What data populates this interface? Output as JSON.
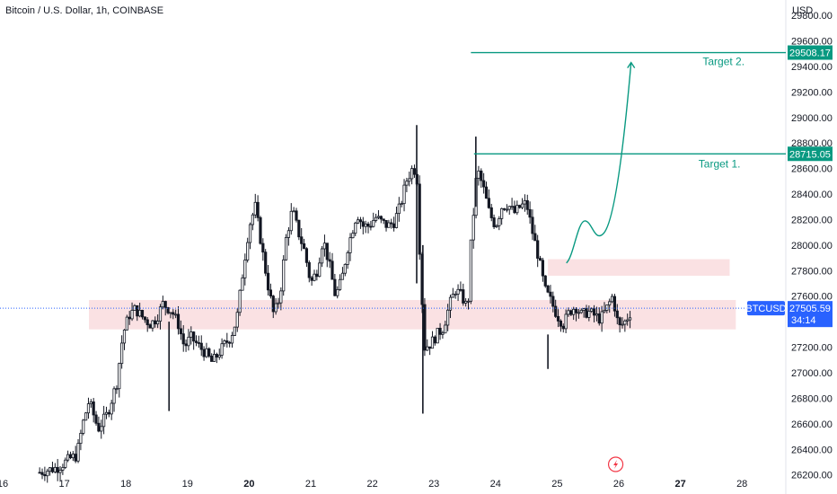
{
  "header": {
    "title": "Bitcoin / U.S. Dollar, 1h, COINBASE",
    "currency": "USD"
  },
  "colors": {
    "target": "#089981",
    "zone": "#f8d7da",
    "price": "#2962ff",
    "candle": "#131722",
    "flash": "#f23645"
  },
  "icons": {
    "flash": "lightning-icon"
  },
  "chart_data": {
    "type": "candlestick",
    "symbol": "BTCUSD",
    "timeframe": "1h",
    "y_ticks": [
      "29800.00",
      "29600.00",
      "29400.00",
      "29200.00",
      "29000.00",
      "28800.00",
      "28600.00",
      "28400.00",
      "28200.00",
      "28000.00",
      "27800.00",
      "27600.00",
      "27400.00",
      "27200.00",
      "27000.00",
      "26800.00",
      "26600.00",
      "26400.00",
      "26200.00"
    ],
    "x_ticks": [
      "16",
      "17",
      "18",
      "19",
      "20",
      "21",
      "22",
      "23",
      "24",
      "25",
      "26",
      "27",
      "28"
    ],
    "x_bold_ticks": [
      "20",
      "27"
    ],
    "ylim": [
      26170,
      29920
    ],
    "last_price": {
      "label": "BTCUSD",
      "value": "27505.59",
      "countdown": "34:14"
    },
    "targets": [
      {
        "label": "Target 1.",
        "value": "28715.05",
        "from_day": 23.65
      },
      {
        "label": "Target 2.",
        "value": "29508.17",
        "from_day": 23.6
      }
    ],
    "zones": [
      {
        "y_low": 27340,
        "y_high": 27570,
        "from_day": 17.4,
        "to_day": 27.9
      },
      {
        "y_low": 27760,
        "y_high": 27890,
        "from_day": 24.85,
        "to_day": 27.8
      }
    ],
    "projection": [
      [
        25.15,
        27860
      ],
      [
        25.45,
        28190
      ],
      [
        25.75,
        28090
      ],
      [
        26.05,
        28600
      ],
      [
        26.2,
        29430
      ]
    ],
    "path": [
      [
        16.6,
        26220
      ],
      [
        16.9,
        26260
      ],
      [
        17.1,
        26330
      ],
      [
        17.2,
        26350
      ],
      [
        17.3,
        26600
      ],
      [
        17.4,
        26780
      ],
      [
        17.55,
        26560
      ],
      [
        17.7,
        26680
      ],
      [
        17.85,
        26920
      ],
      [
        17.95,
        27300
      ],
      [
        18.05,
        27450
      ],
      [
        18.15,
        27500
      ],
      [
        18.3,
        27420
      ],
      [
        18.4,
        27380
      ],
      [
        18.5,
        27430
      ],
      [
        18.6,
        27540
      ],
      [
        18.75,
        27480
      ],
      [
        18.85,
        27380
      ],
      [
        18.95,
        27200
      ],
      [
        19.05,
        27280
      ],
      [
        19.2,
        27200
      ],
      [
        19.3,
        27150
      ],
      [
        19.4,
        27080
      ],
      [
        19.5,
        27150
      ],
      [
        19.6,
        27220
      ],
      [
        19.7,
        27280
      ],
      [
        19.8,
        27420
      ],
      [
        19.9,
        27800
      ],
      [
        20.0,
        28150
      ],
      [
        20.1,
        28300
      ],
      [
        20.2,
        28000
      ],
      [
        20.3,
        27700
      ],
      [
        20.4,
        27450
      ],
      [
        20.5,
        27600
      ],
      [
        20.6,
        28050
      ],
      [
        20.7,
        28280
      ],
      [
        20.8,
        28100
      ],
      [
        20.9,
        27950
      ],
      [
        21.0,
        27700
      ],
      [
        21.1,
        27800
      ],
      [
        21.2,
        28050
      ],
      [
        21.3,
        27850
      ],
      [
        21.4,
        27600
      ],
      [
        21.5,
        27720
      ],
      [
        21.6,
        27980
      ],
      [
        21.75,
        28250
      ],
      [
        21.85,
        28150
      ],
      [
        21.95,
        28150
      ],
      [
        22.05,
        28220
      ],
      [
        22.15,
        28180
      ],
      [
        22.25,
        28150
      ],
      [
        22.35,
        28180
      ],
      [
        22.45,
        28300
      ],
      [
        22.55,
        28500
      ],
      [
        22.65,
        28600
      ],
      [
        22.72,
        28580
      ],
      [
        22.78,
        27800
      ],
      [
        22.85,
        27200
      ],
      [
        22.95,
        27230
      ],
      [
        23.05,
        27300
      ],
      [
        23.15,
        27350
      ],
      [
        23.25,
        27530
      ],
      [
        23.35,
        27650
      ],
      [
        23.45,
        27600
      ],
      [
        23.55,
        27500
      ],
      [
        23.6,
        28000
      ],
      [
        23.7,
        28600
      ],
      [
        23.8,
        28450
      ],
      [
        23.9,
        28250
      ],
      [
        24.0,
        28150
      ],
      [
        24.1,
        28300
      ],
      [
        24.2,
        28320
      ],
      [
        24.3,
        28250
      ],
      [
        24.4,
        28300
      ],
      [
        24.5,
        28330
      ],
      [
        24.6,
        28100
      ],
      [
        24.7,
        27900
      ],
      [
        24.8,
        27650
      ],
      [
        24.9,
        27560
      ],
      [
        25.0,
        27450
      ],
      [
        25.1,
        27380
      ],
      [
        25.2,
        27480
      ],
      [
        25.3,
        27520
      ],
      [
        25.4,
        27450
      ],
      [
        25.5,
        27480
      ],
      [
        25.6,
        27450
      ],
      [
        25.7,
        27420
      ],
      [
        25.8,
        27500
      ],
      [
        25.9,
        27600
      ],
      [
        26.0,
        27350
      ],
      [
        26.1,
        27400
      ],
      [
        26.2,
        27480
      ]
    ]
  }
}
